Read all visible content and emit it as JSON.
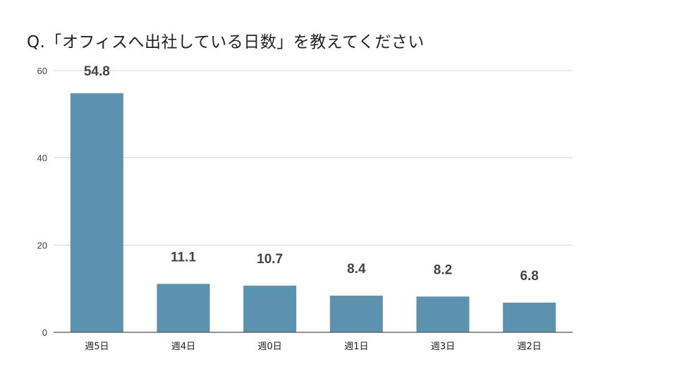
{
  "chart_data": {
    "type": "bar",
    "title": "Q.「オフィスへ出社している日数」を教えてください",
    "categories": [
      "週5日",
      "週4日",
      "週0日",
      "週1日",
      "週3日",
      "週2日"
    ],
    "values": [
      54.8,
      11.1,
      10.7,
      8.4,
      8.2,
      6.8
    ],
    "data_labels": [
      "54.8",
      "11.1",
      "10.7",
      "8.4",
      "8.2",
      "6.8"
    ],
    "y_ticks": [
      0,
      20,
      40,
      60
    ],
    "ylim": [
      0,
      60
    ],
    "grid": true,
    "legend": "none",
    "bar_color": "#5b92b0",
    "grid_color": "#d6d6d6",
    "axis_color": "#555555"
  }
}
